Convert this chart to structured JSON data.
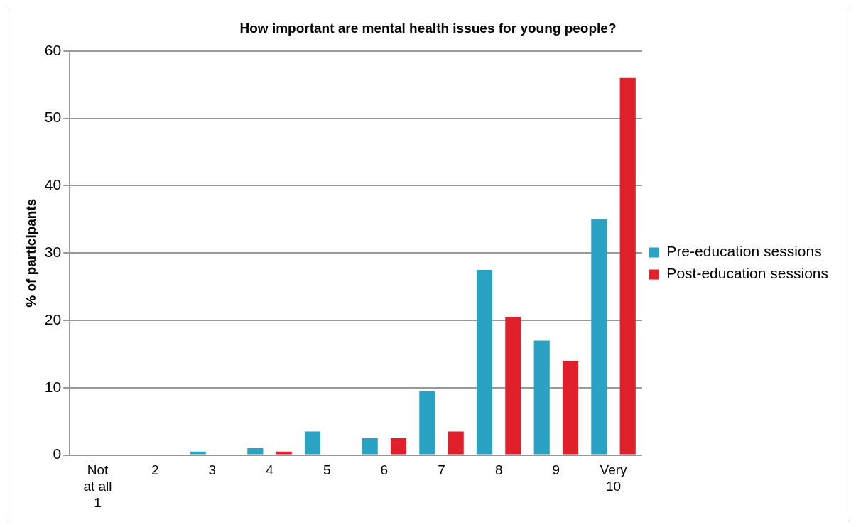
{
  "chart_data": {
    "type": "bar",
    "title": "How important are mental health issues for young people?",
    "ylabel": "% of participants",
    "categories": [
      "Not\nat all\n1",
      "2",
      "3",
      "4",
      "5",
      "6",
      "7",
      "8",
      "9",
      "Very\n10"
    ],
    "series": [
      {
        "name": "Pre-education sessions",
        "color": "#2aa2c4",
        "values": [
          0,
          0,
          0.5,
          1,
          3.5,
          2.5,
          9.5,
          27.5,
          17,
          35
        ]
      },
      {
        "name": "Post-education sessions",
        "color": "#e0212b",
        "values": [
          0,
          0,
          0,
          0.5,
          0,
          2.5,
          3.5,
          20.5,
          14,
          56
        ]
      }
    ],
    "ylim": [
      0,
      60
    ],
    "yticks": [
      0,
      10,
      20,
      30,
      40,
      50,
      60
    ],
    "grid": "y",
    "legend": "right"
  }
}
